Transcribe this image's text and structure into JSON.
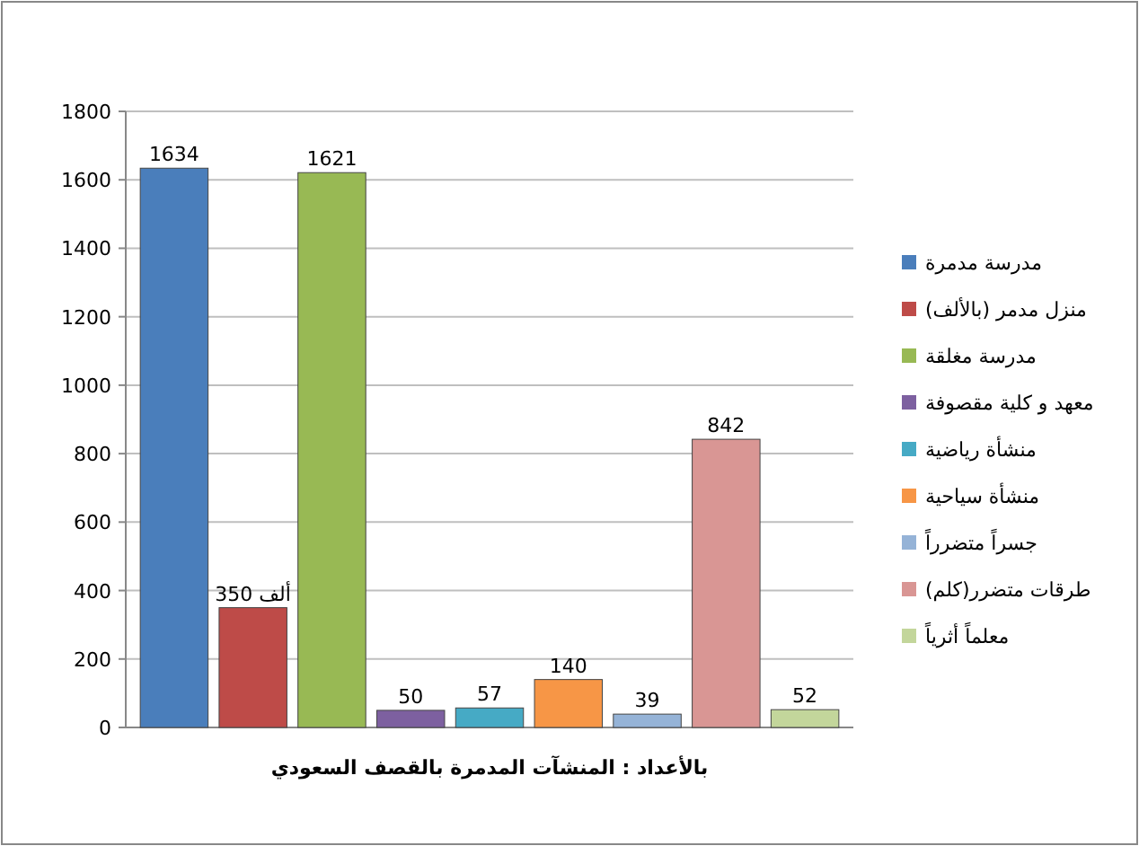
{
  "chart_data": {
    "type": "bar",
    "xlabel": "بالأعداد : المنشآت المدمرة بالقصف السعودي",
    "categories": [
      null
    ],
    "series": [
      {
        "name": "مدرسة مدمرة",
        "color": "#4a7ebb",
        "values": [
          1634
        ],
        "value_labels": [
          "1634"
        ]
      },
      {
        "name": "منزل مدمر (بالألف)",
        "color": "#be4b48",
        "values": [
          350
        ],
        "value_labels": [
          "350 ألف"
        ]
      },
      {
        "name": "مدرسة مغلقة",
        "color": "#98b954",
        "values": [
          1621
        ],
        "value_labels": [
          "1621"
        ]
      },
      {
        "name": "معهد و كلية مقصوفة",
        "color": "#7d60a0",
        "values": [
          50
        ],
        "value_labels": [
          "50"
        ]
      },
      {
        "name": "منشأة رياضية",
        "color": "#46aac5",
        "values": [
          57
        ],
        "value_labels": [
          "57"
        ]
      },
      {
        "name": "منشأة سياحية",
        "color": "#f79646",
        "values": [
          140
        ],
        "value_labels": [
          "140"
        ]
      },
      {
        "name": "جسراً متضرراً",
        "color": "#95b3d7",
        "values": [
          39
        ],
        "value_labels": [
          "39"
        ]
      },
      {
        "name": "طرقات متضرر(كلم)",
        "color": "#d99694",
        "values": [
          842
        ],
        "value_labels": [
          "842"
        ]
      },
      {
        "name": "معلماً أثرياً",
        "color": "#c3d69b",
        "values": [
          52
        ],
        "value_labels": [
          "52"
        ]
      }
    ],
    "ylim": [
      0,
      1800
    ],
    "yticks": [
      0,
      200,
      400,
      600,
      800,
      1000,
      1200,
      1400,
      1600,
      1800
    ],
    "grid": "y",
    "legend": "right"
  }
}
